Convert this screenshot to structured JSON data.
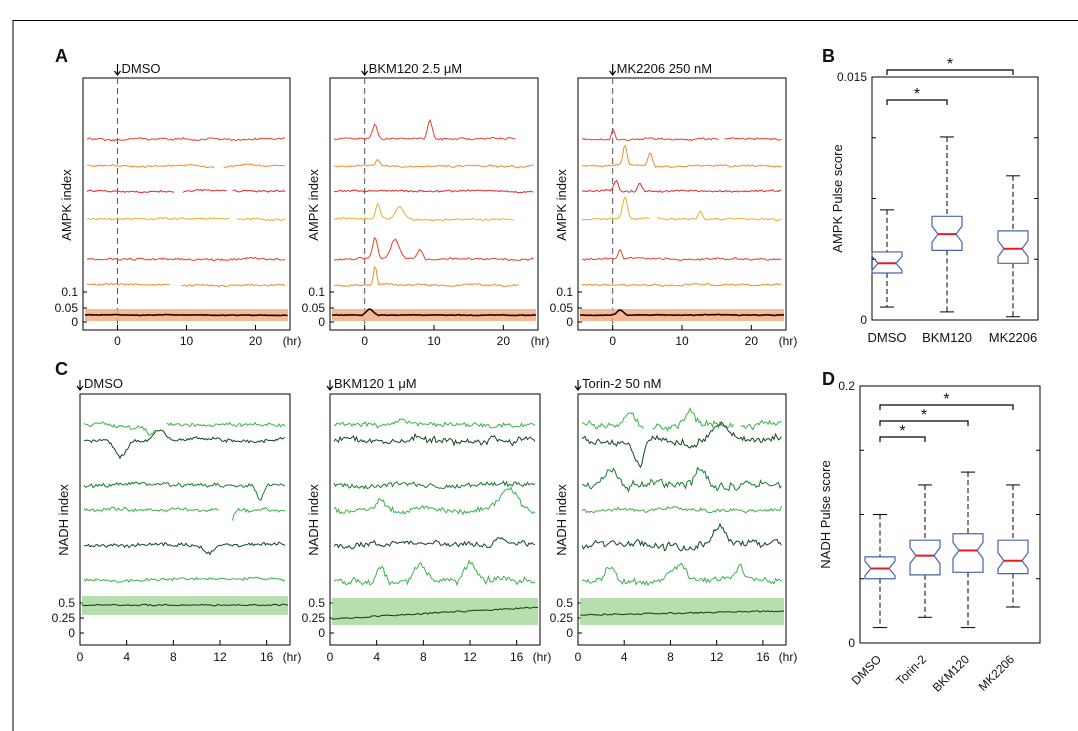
{
  "panel_letters": [
    "A",
    "B",
    "C",
    "D"
  ],
  "colors": {
    "trace_red": "#e8412a",
    "trace_orange": "#f08c2c",
    "trace_crimson": "#d92a32",
    "trace_gold": "#e8b02c",
    "trace_green_light": "#3fb24a",
    "trace_green_dark": "#114a1c",
    "trace_green_mid": "#1c7a30",
    "mean_red_band": "#f4a77a",
    "mean_green_band": "#aad8a0",
    "box_edge": "#4a63ae",
    "median": "#e51b23"
  },
  "chart_data": [
    {
      "panel": "A",
      "type": "line",
      "subplots": [
        {
          "treatment": "DMSO",
          "ylabel": "AMPK index",
          "x_ticks": [
            "0",
            "10",
            "20"
          ],
          "x_unit": "(hr)",
          "y_ticks": [
            "0",
            "0.05",
            "0.1"
          ],
          "xlim": [
            -5,
            25
          ],
          "treatment_time": 0,
          "mean_trace": "flat near 0.03"
        },
        {
          "treatment": "BKM120 2.5 μM",
          "ylabel": "AMPK index",
          "x_ticks": [
            "0",
            "10",
            "20"
          ],
          "x_unit": "(hr)",
          "y_ticks": [
            "0",
            "0.05",
            "0.1"
          ],
          "xlim": [
            -5,
            25
          ],
          "treatment_time": 0
        },
        {
          "treatment": "MK2206 250 nM",
          "ylabel": "AMPK index",
          "x_ticks": [
            "0",
            "10",
            "20"
          ],
          "x_unit": "(hr)",
          "y_ticks": [
            "0",
            "0.05",
            "0.1"
          ],
          "xlim": [
            -5,
            25
          ],
          "treatment_time": 0
        }
      ]
    },
    {
      "panel": "B",
      "type": "box",
      "ylabel": "AMPK Pulse score",
      "ylim": [
        0,
        0.015
      ],
      "y_tick_labels": [
        "0",
        "0.015"
      ],
      "categories": [
        "DMSO",
        "BKM120",
        "MK2206"
      ],
      "boxes": [
        {
          "name": "DMSO",
          "whisker_low": 0.0008,
          "q1": 0.0029,
          "median": 0.0035,
          "q3": 0.0042,
          "whisker_high": 0.0068
        },
        {
          "name": "BKM120",
          "whisker_low": 0.0005,
          "q1": 0.0043,
          "median": 0.0053,
          "q3": 0.0064,
          "whisker_high": 0.0113
        },
        {
          "name": "MK2206",
          "whisker_low": 0.0002,
          "q1": 0.0035,
          "median": 0.0044,
          "q3": 0.0055,
          "whisker_high": 0.0089
        }
      ],
      "significance": [
        {
          "from": "DMSO",
          "to": "BKM120",
          "label": "*"
        },
        {
          "from": "DMSO",
          "to": "MK2206",
          "label": "*"
        }
      ]
    },
    {
      "panel": "C",
      "type": "line",
      "subplots": [
        {
          "treatment": "DMSO",
          "ylabel": "NADH index",
          "x_ticks": [
            "0",
            "4",
            "8",
            "12",
            "16"
          ],
          "x_unit": "(hr)",
          "y_ticks": [
            "0",
            "0.25",
            "0.5"
          ],
          "xlim": [
            0,
            18
          ]
        },
        {
          "treatment": "BKM120 1 μM",
          "ylabel": "NADH index",
          "x_ticks": [
            "0",
            "4",
            "8",
            "12",
            "16"
          ],
          "x_unit": "(hr)",
          "y_ticks": [
            "0",
            "0.25",
            "0.5"
          ],
          "xlim": [
            0,
            18
          ]
        },
        {
          "treatment": "Torin-2 50 nM",
          "ylabel": "NADH index",
          "x_ticks": [
            "0",
            "4",
            "8",
            "12",
            "16"
          ],
          "x_unit": "(hr)",
          "y_ticks": [
            "0",
            "0.25",
            "0.5"
          ],
          "xlim": [
            0,
            18
          ]
        }
      ]
    },
    {
      "panel": "D",
      "type": "box",
      "ylabel": "NADH Pulse score",
      "ylim": [
        0,
        0.2
      ],
      "y_tick_labels": [
        "0",
        "0.2"
      ],
      "categories": [
        "DMSO",
        "Torin-2",
        "BKM120",
        "MK2206"
      ],
      "boxes": [
        {
          "name": "DMSO",
          "whisker_low": 0.012,
          "q1": 0.05,
          "median": 0.058,
          "q3": 0.067,
          "whisker_high": 0.1
        },
        {
          "name": "Torin-2",
          "whisker_low": 0.02,
          "q1": 0.053,
          "median": 0.068,
          "q3": 0.08,
          "whisker_high": 0.123
        },
        {
          "name": "BKM120",
          "whisker_low": 0.012,
          "q1": 0.055,
          "median": 0.072,
          "q3": 0.085,
          "whisker_high": 0.133
        },
        {
          "name": "MK2206",
          "whisker_low": 0.028,
          "q1": 0.054,
          "median": 0.064,
          "q3": 0.08,
          "whisker_high": 0.123
        }
      ],
      "significance": [
        {
          "from": "DMSO",
          "to": "Torin-2",
          "label": "*"
        },
        {
          "from": "DMSO",
          "to": "BKM120",
          "label": "*"
        },
        {
          "from": "DMSO",
          "to": "MK2206",
          "label": "*"
        }
      ]
    }
  ]
}
